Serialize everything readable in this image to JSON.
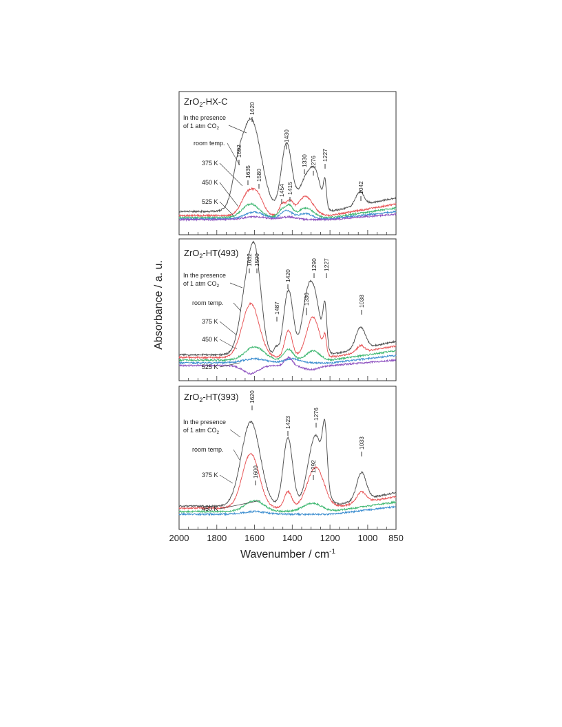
{
  "figure": {
    "ylabel": "Absorbance / a. u.",
    "xlabel_main": "Wavenumber / cm",
    "xlabel_sup": "-1",
    "xticks": [
      2000,
      1800,
      1600,
      1400,
      1200,
      1000,
      850
    ]
  },
  "colors": {
    "co2": "#555555",
    "room_temp": "#e8585a",
    "375K": "#40b872",
    "450K": "#3d8ed0",
    "525K": "#8e52c0",
    "frame": "#333333"
  },
  "chart_data": [
    {
      "type": "line",
      "title_main": "ZrO",
      "title_sub": "2",
      "title_rest": "-HX-C",
      "xlim": [
        2000,
        850
      ],
      "ylim": [
        0,
        1
      ],
      "xlabel": "Wavenumber / cm-1",
      "ylabel": "Absorbance / a. u.",
      "series": [
        {
          "name": "In the presence of 1 atm CO2",
          "line1": "In the presence",
          "line2_main": "of 1 atm CO",
          "line2_sub": "2",
          "color_key": "co2",
          "offset": 0.06,
          "peaks": [
            {
              "x": 1620,
              "h": 0.68,
              "w": 55
            },
            {
              "x": 1692,
              "h": 0.12,
              "w": 25
            },
            {
              "x": 1430,
              "h": 0.5,
              "w": 28
            },
            {
              "x": 1330,
              "h": 0.22,
              "w": 35
            },
            {
              "x": 1276,
              "h": 0.24,
              "w": 30
            },
            {
              "x": 1227,
              "h": 0.18,
              "w": 8
            },
            {
              "x": 1042,
              "h": 0.1,
              "w": 22
            }
          ]
        },
        {
          "name": "room temp.",
          "color_key": "room_temp",
          "offset": 0.03,
          "peaks": [
            {
              "x": 1635,
              "h": 0.16,
              "w": 35
            },
            {
              "x": 1580,
              "h": 0.12,
              "w": 30
            },
            {
              "x": 1454,
              "h": 0.08,
              "w": 15
            },
            {
              "x": 1415,
              "h": 0.1,
              "w": 18
            },
            {
              "x": 1330,
              "h": 0.14,
              "w": 40
            }
          ]
        },
        {
          "name": "375 K",
          "color_key": "375K",
          "offset": 0.015,
          "peaks": [
            {
              "x": 1620,
              "h": 0.1,
              "w": 45
            },
            {
              "x": 1454,
              "h": 0.06,
              "w": 20
            },
            {
              "x": 1415,
              "h": 0.08,
              "w": 18
            },
            {
              "x": 1330,
              "h": 0.07,
              "w": 40
            }
          ]
        },
        {
          "name": "450 K",
          "color_key": "450K",
          "offset": 0.005,
          "peaks": [
            {
              "x": 1600,
              "h": 0.05,
              "w": 50
            },
            {
              "x": 1430,
              "h": 0.06,
              "w": 30
            },
            {
              "x": 1330,
              "h": 0.04,
              "w": 35
            }
          ]
        },
        {
          "name": "525 K",
          "color_key": "525K",
          "offset": 0.0,
          "peaks": [
            {
              "x": 1600,
              "h": 0.02,
              "w": 60
            },
            {
              "x": 1420,
              "h": 0.02,
              "w": 40
            }
          ]
        }
      ],
      "peak_labels": [
        "1620",
        "1692",
        "1430",
        "1330",
        "1276",
        "1227",
        "1635",
        "1580",
        "1454",
        "1415",
        "1042"
      ]
    },
    {
      "type": "line",
      "title_main": "ZrO",
      "title_sub": "2",
      "title_rest": "-HT(493)",
      "xlim": [
        2000,
        850
      ],
      "ylim": [
        0,
        1
      ],
      "xlabel": "Wavenumber / cm-1",
      "ylabel": "Absorbance / a. u.",
      "series": [
        {
          "name": "In the presence of 1 atm CO2",
          "line1": "In the presence",
          "line2_main": "of 1 atm CO",
          "line2_sub": "2",
          "color_key": "co2",
          "offset": 0.08,
          "peaks": [
            {
              "x": 1632,
              "h": 0.55,
              "w": 40
            },
            {
              "x": 1590,
              "h": 0.45,
              "w": 30
            },
            {
              "x": 1487,
              "h": 0.05,
              "w": 10
            },
            {
              "x": 1420,
              "h": 0.48,
              "w": 25
            },
            {
              "x": 1330,
              "h": 0.18,
              "w": 25
            },
            {
              "x": 1290,
              "h": 0.48,
              "w": 35
            },
            {
              "x": 1227,
              "h": 0.3,
              "w": 10
            },
            {
              "x": 1038,
              "h": 0.16,
              "w": 25
            }
          ]
        },
        {
          "name": "room temp.",
          "color_key": "room_temp",
          "offset": 0.06,
          "peaks": [
            {
              "x": 1620,
              "h": 0.4,
              "w": 45
            },
            {
              "x": 1420,
              "h": 0.2,
              "w": 20
            },
            {
              "x": 1290,
              "h": 0.3,
              "w": 35
            },
            {
              "x": 1227,
              "h": 0.12,
              "w": 8
            },
            {
              "x": 1038,
              "h": 0.05,
              "w": 20
            }
          ]
        },
        {
          "name": "375 K",
          "color_key": "375K",
          "offset": 0.04,
          "peaks": [
            {
              "x": 1600,
              "h": 0.1,
              "w": 50
            },
            {
              "x": 1420,
              "h": 0.08,
              "w": 25
            },
            {
              "x": 1290,
              "h": 0.07,
              "w": 35
            }
          ]
        },
        {
          "name": "450 K",
          "color_key": "450K",
          "offset": 0.02,
          "peaks": [
            {
              "x": 1600,
              "h": 0.03,
              "w": 60
            },
            {
              "x": 1400,
              "h": 0.03,
              "w": 40
            }
          ]
        },
        {
          "name": "525 K",
          "color_key": "525K",
          "offset": 0.0,
          "peaks": [
            {
              "x": 1620,
              "h": -0.06,
              "w": 40
            },
            {
              "x": 1420,
              "h": 0.06,
              "w": 20
            },
            {
              "x": 1300,
              "h": -0.03,
              "w": 40
            }
          ]
        }
      ],
      "peak_labels": [
        "1632",
        "1590",
        "1487",
        "1420",
        "1330",
        "1290",
        "1227",
        "1038"
      ]
    },
    {
      "type": "line",
      "title_main": "ZrO",
      "title_sub": "2",
      "title_rest": "-HT(393)",
      "xlim": [
        2000,
        850
      ],
      "ylim": [
        0,
        1
      ],
      "xlabel": "Wavenumber / cm-1",
      "ylabel": "Absorbance / a. u.",
      "series": [
        {
          "name": "In the presence of 1 atm CO2",
          "line1": "In the presence",
          "line2_main": "of 1 atm CO",
          "line2_sub": "2",
          "color_key": "co2",
          "offset": 0.06,
          "peaks": [
            {
              "x": 1620,
              "h": 0.62,
              "w": 50
            },
            {
              "x": 1423,
              "h": 0.5,
              "w": 25
            },
            {
              "x": 1276,
              "h": 0.52,
              "w": 40
            },
            {
              "x": 1227,
              "h": 0.38,
              "w": 12
            },
            {
              "x": 1033,
              "h": 0.2,
              "w": 25
            }
          ]
        },
        {
          "name": "room temp.",
          "color_key": "room_temp",
          "offset": 0.045,
          "peaks": [
            {
              "x": 1620,
              "h": 0.4,
              "w": 45
            },
            {
              "x": 1423,
              "h": 0.12,
              "w": 20
            },
            {
              "x": 1276,
              "h": 0.3,
              "w": 45
            },
            {
              "x": 1033,
              "h": 0.08,
              "w": 25
            }
          ]
        },
        {
          "name": "375 K",
          "color_key": "375K",
          "offset": 0.02,
          "peaks": [
            {
              "x": 1600,
              "h": 0.08,
              "w": 50
            },
            {
              "x": 1292,
              "h": 0.06,
              "w": 50
            }
          ]
        },
        {
          "name": "450 K",
          "color_key": "450K",
          "offset": 0.0,
          "peaks": [
            {
              "x": 1600,
              "h": 0.02,
              "w": 60
            }
          ]
        }
      ],
      "peak_labels": [
        "1620",
        "1423",
        "1276",
        "1033",
        "1600",
        "1292"
      ]
    }
  ]
}
